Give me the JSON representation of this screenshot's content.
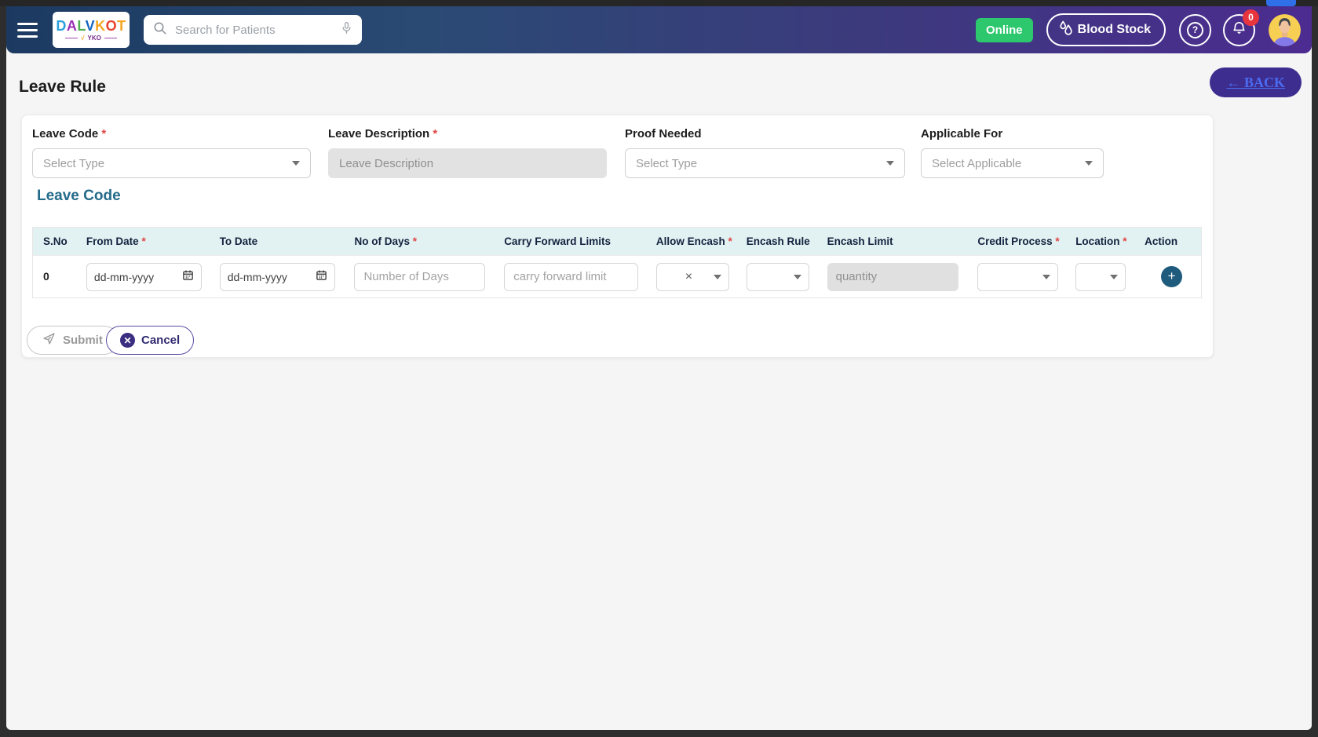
{
  "navbar": {
    "logo_letters": [
      {
        "ch": "D",
        "color": "#2aa0db"
      },
      {
        "ch": "A",
        "color": "#9b30b5"
      },
      {
        "ch": "L",
        "color": "#4caf50"
      },
      {
        "ch": "V",
        "color": "#1565c0"
      },
      {
        "ch": "K",
        "color": "#f5a623"
      },
      {
        "ch": "O",
        "color": "#e8432e"
      },
      {
        "ch": "T",
        "color": "#f5a623"
      }
    ],
    "logo_sub_check": "√",
    "logo_sub_text": "YKO",
    "search_placeholder": "Search for Patients",
    "online_label": "Online",
    "blood_stock_label": "Blood Stock",
    "notification_badge": "0"
  },
  "page": {
    "title": "Leave Rule",
    "back_label": "← BACK"
  },
  "form": {
    "leave_code": {
      "label": "Leave Code",
      "required": "*",
      "placeholder": "Select Type"
    },
    "leave_description": {
      "label": "Leave Description",
      "required": "*",
      "placeholder": "Leave Description"
    },
    "proof_needed": {
      "label": "Proof Needed",
      "required": "",
      "placeholder": "Select Type"
    },
    "applicable_for": {
      "label": "Applicable For",
      "required": "",
      "placeholder": "Select Applicable"
    }
  },
  "section": {
    "title": "Leave Code"
  },
  "table": {
    "headers": [
      {
        "label": "S.No",
        "required": ""
      },
      {
        "label": "From Date",
        "required": "*"
      },
      {
        "label": "To Date",
        "required": ""
      },
      {
        "label": "No of Days",
        "required": "*"
      },
      {
        "label": "Carry Forward Limits",
        "required": ""
      },
      {
        "label": "Allow Encash",
        "required": "*"
      },
      {
        "label": "Encash Rule",
        "required": ""
      },
      {
        "label": "Encash Limit",
        "required": ""
      },
      {
        "label": "Credit Process",
        "required": "*"
      },
      {
        "label": "Location",
        "required": "*"
      },
      {
        "label": "Action",
        "required": ""
      }
    ],
    "row": {
      "sno": "0",
      "from_date_placeholder": "dd-mm-yyyy",
      "to_date_placeholder": "dd-mm-yyyy",
      "no_of_days_placeholder": "Number of Days",
      "carry_forward_placeholder": "carry forward limit",
      "allow_encash_value": "×",
      "encash_limit_placeholder": "quantity",
      "add_button_label": "+"
    }
  },
  "footer": {
    "submit_label": "Submit",
    "cancel_label": "Cancel"
  },
  "colors": {
    "navbar_gradient_start": "#1c3a61",
    "navbar_gradient_end": "#4c2c90",
    "online_green": "#2dc76d",
    "badge_red": "#e8343d",
    "section_heading_teal": "#256b8a",
    "add_button_teal": "#1f5b7d",
    "back_button_purple": "#3d2d8f",
    "back_link_blue": "#4b6cf0",
    "table_header_bg": "#e2f1f1"
  }
}
